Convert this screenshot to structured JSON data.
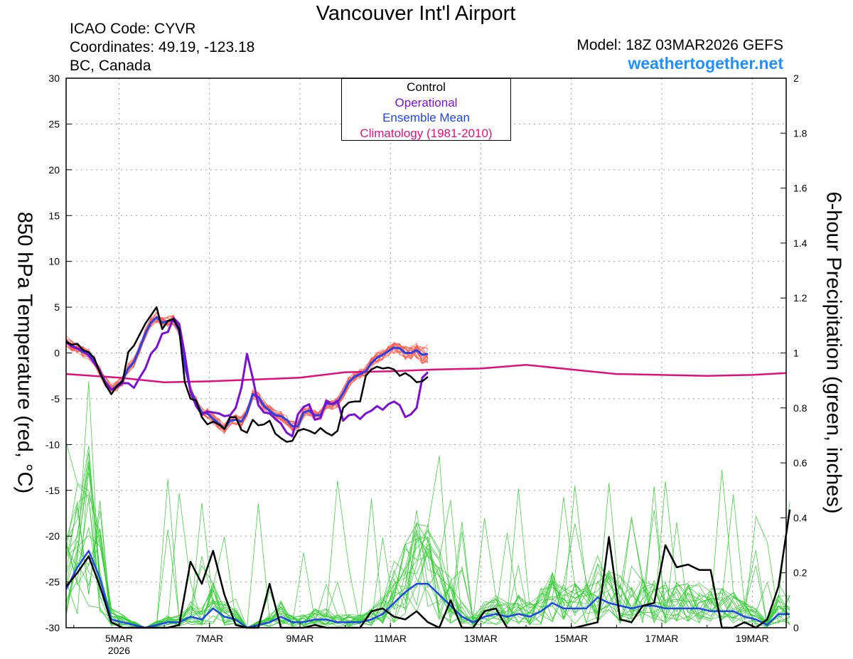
{
  "header": {
    "title": "Vancouver Int'l Airport",
    "icao": "ICAO Code: CYVR",
    "coordinates": "Coordinates: 49.19, -123.18",
    "region": "BC, Canada",
    "model": "Model: 18Z 03MAR2026 GEFS",
    "website": "weathertogether.net"
  },
  "legend": {
    "control": "Control",
    "operational": "Operational",
    "ensemble_mean": "Ensemble Mean",
    "climatology": "Climatology (1981-2010)"
  },
  "colors": {
    "control": "#000000",
    "operational": "#7b0fd6",
    "ensemble_mean": "#2244ee",
    "climatology": "#e0107a",
    "members_temp": "#ff5a4a",
    "members_precip": "#33cc33",
    "website": "#1e90ff"
  },
  "chart_data": {
    "type": "line",
    "ylabel_left": "850 hPa Temperature (red, °C)",
    "ylabel_right": "6-hour Precipitation (green, inches)",
    "ylim_left": [
      -30,
      30
    ],
    "ylim_right": [
      0,
      2
    ],
    "yticks_left": [
      "30",
      "25",
      "20",
      "15",
      "10",
      "5",
      "0",
      "-5",
      "-10",
      "-15",
      "-20",
      "-25",
      "-30"
    ],
    "yticks_right": [
      "2",
      "1.8",
      "1.6",
      "1.4",
      "1.2",
      "1",
      "0.8",
      "0.6",
      "0.4",
      "0.2",
      "0"
    ],
    "xlim": [
      3.83,
      19.75
    ],
    "xticks": [
      {
        "x": 5,
        "label": "5MAR",
        "sub": "2026"
      },
      {
        "x": 7,
        "label": "7MAR",
        "sub": ""
      },
      {
        "x": 9,
        "label": "9MAR",
        "sub": ""
      },
      {
        "x": 11,
        "label": "11MAR",
        "sub": ""
      },
      {
        "x": 13,
        "label": "13MAR",
        "sub": ""
      },
      {
        "x": 15,
        "label": "15MAR",
        "sub": ""
      },
      {
        "x": 17,
        "label": "17MAR",
        "sub": ""
      },
      {
        "x": 19,
        "label": "19MAR",
        "sub": ""
      }
    ],
    "grid": true,
    "temperature": {
      "x_start": 3.83,
      "x_step": 0.125,
      "control": [
        1.2,
        0.9,
        1.0,
        0.3,
        0.1,
        -0.6,
        -2.2,
        -3.5,
        -4.5,
        -3.6,
        -3.1,
        0.1,
        0.8,
        2.0,
        3.2,
        4.1,
        5.0,
        2.6,
        3.5,
        3.7,
        2.6,
        -3.2,
        -5.0,
        -5.2,
        -7.0,
        -7.8,
        -7.5,
        -7.8,
        -8.3,
        -7.0,
        -7.0,
        -8.4,
        -8.7,
        -7.3,
        -7.9,
        -7.8,
        -7.4,
        -8.8,
        -9.3,
        -9.7,
        -9.6,
        -8.5,
        -8.3,
        -8.5,
        -8.8,
        -8.2,
        -8.7,
        -9.0,
        -8.5,
        -6.0,
        -5.4,
        -5.3,
        -5.3,
        -2.5,
        -1.8,
        -1.5,
        -1.7,
        -1.6,
        -1.8,
        -2.5,
        -2.2,
        -2.6,
        -3.2,
        -3.1,
        -2.6
      ],
      "operational": [
        1.2,
        0.7,
        0.5,
        0.3,
        -0.3,
        -1.1,
        -2.0,
        -3.3,
        -4.0,
        -3.7,
        -3.3,
        -3.3,
        -3.8,
        -2.7,
        -1.7,
        -0.1,
        0.6,
        2.1,
        2.3,
        3.8,
        3.2,
        -0.2,
        -4.2,
        -5.8,
        -6.7,
        -6.4,
        -6.5,
        -6.6,
        -6.9,
        -6.8,
        -6.0,
        -3.8,
        -0.1,
        -2.7,
        -5.7,
        -6.5,
        -6.6,
        -7.2,
        -7.7,
        -8.7,
        -9.1,
        -6.7,
        -5.9,
        -5.6,
        -7.3,
        -7.1,
        -5.2,
        -5.6,
        -5.2,
        -7.4,
        -6.8,
        -6.7,
        -7.2,
        -6.6,
        -6.3,
        -5.8,
        -6.2,
        -5.6,
        -5.3,
        -5.7,
        -7.0,
        -6.7,
        -6.0,
        -2.7,
        -2.1
      ],
      "ensemble_mean": [
        1.3,
        0.8,
        0.5,
        0.1,
        -0.1,
        -0.8,
        -2.0,
        -3.2,
        -4.0,
        -3.6,
        -3.0,
        -1.7,
        -1.0,
        0.5,
        2.1,
        3.3,
        3.9,
        3.3,
        3.5,
        3.6,
        2.4,
        -1.3,
        -4.1,
        -5.3,
        -6.5,
        -6.6,
        -7.2,
        -7.7,
        -8.3,
        -7.4,
        -7.3,
        -7.5,
        -6.5,
        -4.5,
        -4.8,
        -5.8,
        -6.3,
        -6.8,
        -6.9,
        -7.3,
        -8.0,
        -8.0,
        -6.5,
        -6.3,
        -6.8,
        -6.8,
        -5.5,
        -5.6,
        -5.4,
        -4.4,
        -3.2,
        -2.6,
        -2.3,
        -2.0,
        -1.1,
        -0.5,
        -0.2,
        0.2,
        0.6,
        0.5,
        0.0,
        0.0,
        0.3,
        -0.2,
        -0.1
      ],
      "climatology": {
        "x": [
          3.83,
          5.0,
          6.0,
          7.0,
          8.0,
          9.0,
          10.0,
          11.0,
          12.0,
          13.0,
          14.0,
          15.0,
          16.0,
          17.0,
          18.0,
          19.0,
          19.75
        ],
        "y": [
          -2.3,
          -2.7,
          -3.2,
          -3.1,
          -2.9,
          -2.7,
          -2.1,
          -2.0,
          -1.8,
          -1.7,
          -1.3,
          -1.8,
          -2.3,
          -2.4,
          -2.5,
          -2.4,
          -2.2
        ]
      }
    },
    "precipitation": {
      "x_start": 3.83,
      "x_step": 0.25,
      "control": [
        0.15,
        0.2,
        0.26,
        0.15,
        0.02,
        0.0,
        0.0,
        0.0,
        0.0,
        0.0,
        0.01,
        0.24,
        0.16,
        0.28,
        0.12,
        0.01,
        0.0,
        0.0,
        0.16,
        0.0,
        0.0,
        0.0,
        0.01,
        0.0,
        0.0,
        0.0,
        0.0,
        0.06,
        0.07,
        0.04,
        0.03,
        0.06,
        0.02,
        0.0,
        0.1,
        0.0,
        0.0,
        0.06,
        0.07,
        0.0,
        0.0,
        0.0,
        0.0,
        0.0,
        0.0,
        0.0,
        0.01,
        0.02,
        0.33,
        0.03,
        0.02,
        0.08,
        0.09,
        0.3,
        0.22,
        0.23,
        0.21,
        0.21,
        0.0,
        0.0,
        0.02,
        0.0,
        0.03,
        0.15,
        0.43
      ],
      "ensemble_mean": [
        0.14,
        0.22,
        0.28,
        0.18,
        0.03,
        0.02,
        0.01,
        0.0,
        0.01,
        0.02,
        0.02,
        0.04,
        0.03,
        0.07,
        0.04,
        0.03,
        0.0,
        0.01,
        0.02,
        0.04,
        0.02,
        0.02,
        0.03,
        0.03,
        0.02,
        0.02,
        0.02,
        0.03,
        0.05,
        0.09,
        0.13,
        0.16,
        0.16,
        0.12,
        0.08,
        0.04,
        0.02,
        0.04,
        0.05,
        0.04,
        0.05,
        0.04,
        0.06,
        0.09,
        0.07,
        0.07,
        0.07,
        0.11,
        0.09,
        0.08,
        0.07,
        0.08,
        0.08,
        0.07,
        0.07,
        0.07,
        0.07,
        0.06,
        0.06,
        0.06,
        0.04,
        0.03,
        0.01,
        0.05,
        0.05
      ]
    }
  }
}
